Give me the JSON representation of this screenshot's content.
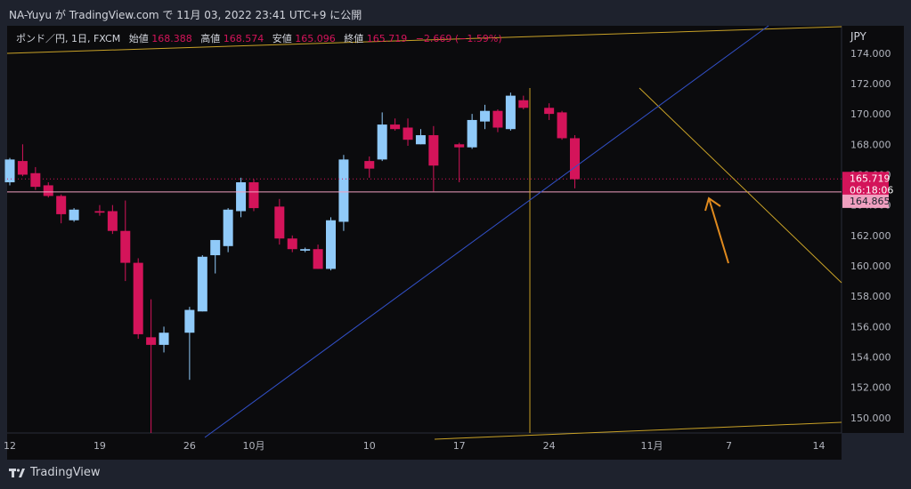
{
  "header": {
    "title": "NA-Yuyu が TradingView.com で 11月 03, 2022 23:41 UTC+9 に公開"
  },
  "legend": {
    "symbol": "ポンド／円, 1日, FXCM",
    "open_label": "始値",
    "open": "168.388",
    "high_label": "高値",
    "high": "168.574",
    "low_label": "安値",
    "low": "165.096",
    "close_label": "終値",
    "close": "165.719",
    "change": "−2.669 (−1.59%)"
  },
  "footer": {
    "brand": "TradingView"
  },
  "colors": {
    "background": "#0b0b0d",
    "frame": "#1e222d",
    "up": "#90caf9",
    "down": "#d4145a",
    "trendline_yellow": "#c9a227",
    "trendline_blue": "#3250c8",
    "arrow": "#e08a1e",
    "hline": "#f0a0c0"
  },
  "chart_data": {
    "type": "candlestick",
    "currency_label": "JPY",
    "ylim": [
      149.0,
      175.8
    ],
    "y_ticks": [
      "174.000",
      "172.000",
      "170.000",
      "168.000",
      "166.000",
      "164.000",
      "162.000",
      "160.000",
      "158.000",
      "156.000",
      "154.000",
      "152.000",
      "150.000"
    ],
    "x_ticks": [
      {
        "label": "12",
        "day": 0
      },
      {
        "label": "19",
        "day": 7
      },
      {
        "label": "26",
        "day": 14
      },
      {
        "label": "10月",
        "day": 19
      },
      {
        "label": "10",
        "day": 28
      },
      {
        "label": "17",
        "day": 35
      },
      {
        "label": "24",
        "day": 42
      },
      {
        "label": "11月",
        "day": 50
      },
      {
        "label": "7",
        "day": 56
      },
      {
        "label": "14",
        "day": 63
      }
    ],
    "candles": [
      {
        "day": 0,
        "o": 165.5,
        "h": 167.1,
        "l": 165.3,
        "c": 167.0
      },
      {
        "day": 1,
        "o": 166.9,
        "h": 168.0,
        "l": 165.9,
        "c": 166.0
      },
      {
        "day": 2,
        "o": 166.1,
        "h": 166.5,
        "l": 165.0,
        "c": 165.2
      },
      {
        "day": 3,
        "o": 165.3,
        "h": 165.5,
        "l": 164.5,
        "c": 164.6
      },
      {
        "day": 4,
        "o": 164.6,
        "h": 164.7,
        "l": 162.8,
        "c": 163.4
      },
      {
        "day": 5,
        "o": 163.0,
        "h": 163.8,
        "l": 162.9,
        "c": 163.7
      },
      {
        "day": 7,
        "o": 163.6,
        "h": 164.0,
        "l": 163.3,
        "c": 163.5
      },
      {
        "day": 8,
        "o": 163.6,
        "h": 164.0,
        "l": 162.1,
        "c": 162.3
      },
      {
        "day": 9,
        "o": 162.3,
        "h": 164.3,
        "l": 159.0,
        "c": 160.2
      },
      {
        "day": 10,
        "o": 160.2,
        "h": 160.5,
        "l": 155.2,
        "c": 155.5
      },
      {
        "day": 11,
        "o": 155.3,
        "h": 157.8,
        "l": 149.0,
        "c": 154.8
      },
      {
        "day": 12,
        "o": 154.8,
        "h": 156.0,
        "l": 154.3,
        "c": 155.6
      },
      {
        "day": 14,
        "o": 155.6,
        "h": 157.3,
        "l": 152.5,
        "c": 157.1
      },
      {
        "day": 15,
        "o": 157.0,
        "h": 160.7,
        "l": 157.0,
        "c": 160.6
      },
      {
        "day": 16,
        "o": 160.7,
        "h": 161.7,
        "l": 159.5,
        "c": 161.7
      },
      {
        "day": 17,
        "o": 161.3,
        "h": 163.8,
        "l": 160.9,
        "c": 163.7
      },
      {
        "day": 18,
        "o": 163.6,
        "h": 165.8,
        "l": 163.2,
        "c": 165.5
      },
      {
        "day": 19,
        "o": 165.5,
        "h": 165.7,
        "l": 163.6,
        "c": 163.8
      },
      {
        "day": 21,
        "o": 163.9,
        "h": 164.4,
        "l": 161.4,
        "c": 161.8
      },
      {
        "day": 22,
        "o": 161.8,
        "h": 162.0,
        "l": 160.9,
        "c": 161.1
      },
      {
        "day": 23,
        "o": 161.0,
        "h": 161.2,
        "l": 160.9,
        "c": 161.1
      },
      {
        "day": 24,
        "o": 161.1,
        "h": 161.4,
        "l": 159.8,
        "c": 159.8
      },
      {
        "day": 25,
        "o": 159.8,
        "h": 163.2,
        "l": 159.7,
        "c": 163.0
      },
      {
        "day": 26,
        "o": 162.9,
        "h": 167.3,
        "l": 162.3,
        "c": 167.0
      },
      {
        "day": 28,
        "o": 166.9,
        "h": 167.2,
        "l": 165.8,
        "c": 166.4
      },
      {
        "day": 29,
        "o": 167.0,
        "h": 170.1,
        "l": 166.9,
        "c": 169.3
      },
      {
        "day": 30,
        "o": 169.3,
        "h": 169.7,
        "l": 168.9,
        "c": 169.0
      },
      {
        "day": 31,
        "o": 169.1,
        "h": 169.7,
        "l": 167.9,
        "c": 168.3
      },
      {
        "day": 32,
        "o": 168.0,
        "h": 169.0,
        "l": 168.0,
        "c": 168.6
      },
      {
        "day": 33,
        "o": 168.6,
        "h": 169.2,
        "l": 164.9,
        "c": 166.6
      },
      {
        "day": 35,
        "o": 168.0,
        "h": 168.1,
        "l": 165.5,
        "c": 167.8
      },
      {
        "day": 36,
        "o": 167.8,
        "h": 170.0,
        "l": 167.7,
        "c": 169.6
      },
      {
        "day": 37,
        "o": 169.5,
        "h": 170.6,
        "l": 169.0,
        "c": 170.2
      },
      {
        "day": 38,
        "o": 170.2,
        "h": 170.3,
        "l": 168.8,
        "c": 169.1
      },
      {
        "day": 39,
        "o": 169.0,
        "h": 171.4,
        "l": 168.9,
        "c": 171.2
      },
      {
        "day": 40,
        "o": 170.9,
        "h": 171.2,
        "l": 170.3,
        "c": 170.4
      },
      {
        "day": 42,
        "o": 170.4,
        "h": 170.7,
        "l": 169.6,
        "c": 170.0
      },
      {
        "day": 43,
        "o": 170.1,
        "h": 170.2,
        "l": 168.3,
        "c": 168.4
      },
      {
        "day": 44,
        "o": 168.4,
        "h": 168.6,
        "l": 165.1,
        "c": 165.7
      }
    ],
    "price_labels": [
      {
        "price": 165.719,
        "text": "165.719",
        "sub": "06:18:06",
        "style": "down"
      },
      {
        "price": 164.865,
        "text": "164.865",
        "style": "line"
      }
    ],
    "dotted_line_price": 165.719,
    "horizontal_line_price": 164.865,
    "vertical_line_day": 40.5
  }
}
